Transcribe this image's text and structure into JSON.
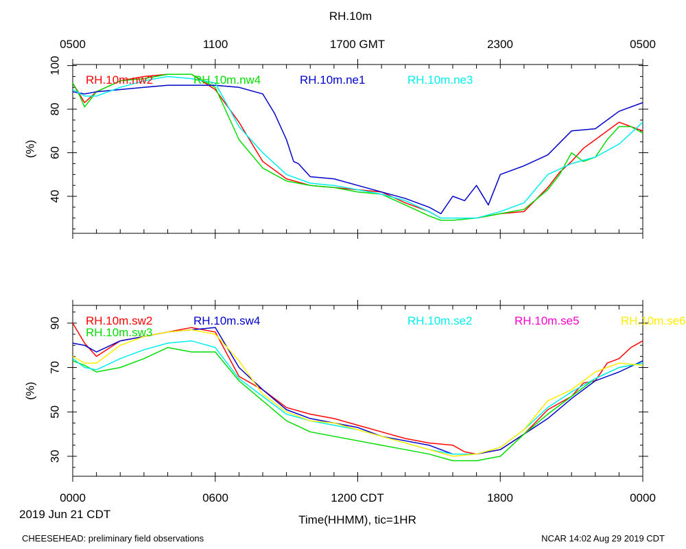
{
  "chart_data": {
    "type": "line",
    "title": "RH.10m",
    "top_axis": {
      "ticks": [
        0,
        6,
        12,
        18,
        24
      ],
      "labels": [
        "0500",
        "1100",
        "1700 GMT",
        "2300",
        "0500"
      ]
    },
    "bottom_axis": {
      "ticks": [
        0,
        6,
        12,
        18,
        24
      ],
      "labels": [
        "0000",
        "0600",
        "1200 CDT",
        "1800",
        "0000"
      ],
      "xlabel": "Time(HHMM), tic=1HR",
      "date_label": "2019 Jun 21 CDT",
      "xlim": [
        0,
        24
      ]
    },
    "footer_left": "CHEESEHEAD: preliminary field observations",
    "footer_right": "NCAR 14:02 Aug 29 2019 CDT",
    "panels": [
      {
        "ylabel": "(%)",
        "ylim": [
          23,
          100.5
        ],
        "yticks": [
          40,
          60,
          80,
          100
        ],
        "ytick_labels": [
          "40",
          "60",
          "80",
          "100"
        ],
        "series": [
          {
            "name": "RH.10m.nw2",
            "color": "#ff0000",
            "x": [
              0,
              0.5,
              1,
              2,
              3,
              4,
              5,
              6,
              7,
              8,
              9,
              10,
              11,
              12,
              13,
              14,
              15,
              15.5,
              16,
              17,
              18,
              19,
              20,
              20.5,
              21,
              21.5,
              22,
              22.5,
              23,
              23.5,
              24
            ],
            "y": [
              92,
              83,
              88,
              93,
              95,
              96,
              96,
              89,
              74,
              56,
              48,
              45,
              44,
              43,
              42,
              37,
              33,
              30,
              30,
              30,
              32,
              33,
              44,
              51,
              56,
              62,
              66,
              70,
              74,
              72,
              70
            ]
          },
          {
            "name": "RH.10m.nw4",
            "color": "#00dd00",
            "x": [
              0,
              0.3,
              0.5,
              1,
              2,
              3,
              4,
              5,
              6,
              7,
              8,
              9,
              10,
              11,
              12,
              13,
              14,
              15,
              15.5,
              16,
              17,
              18,
              19,
              20,
              20.5,
              21,
              21.5,
              22,
              22.5,
              23,
              23.5,
              24
            ],
            "y": [
              92,
              86,
              81,
              88,
              93,
              94,
              96,
              96,
              90,
              66,
              53,
              47,
              45,
              44,
              42,
              41,
              36,
              31,
              29,
              29,
              30,
              32,
              34,
              43,
              50,
              60,
              56,
              58,
              66,
              72,
              72,
              69
            ]
          },
          {
            "name": "RH.10m.ne1",
            "color": "#0000cc",
            "x": [
              0,
              0.5,
              1,
              2,
              3,
              4,
              5,
              6,
              7,
              8,
              8.5,
              9,
              9.3,
              9.5,
              10,
              11,
              12,
              13,
              14,
              15,
              15.5,
              16,
              16.5,
              17,
              17.5,
              18,
              19,
              20,
              21,
              22,
              23,
              24
            ],
            "y": [
              88,
              87,
              88,
              89,
              90,
              91,
              91,
              91,
              90,
              87,
              78,
              66,
              56,
              55,
              49,
              48,
              45,
              42,
              39,
              35,
              32,
              40,
              38,
              45,
              36,
              50,
              54,
              59,
              70,
              71,
              79,
              83
            ]
          },
          {
            "name": "RH.10m.ne3",
            "color": "#00eeee",
            "x": [
              0,
              0.5,
              1,
              2,
              3,
              4,
              5,
              6,
              7,
              8,
              9,
              10,
              11,
              12,
              13,
              14,
              15,
              15.5,
              16,
              17,
              18,
              19,
              20,
              21,
              22,
              23,
              24
            ],
            "y": [
              89,
              86,
              86,
              90,
              93,
              95,
              94,
              92,
              72,
              60,
              50,
              46,
              45,
              43,
              41,
              38,
              33,
              30,
              30,
              30,
              33,
              37,
              50,
              55,
              58,
              64,
              74
            ]
          }
        ]
      },
      {
        "ylabel": "(%)",
        "ylim": [
          21,
          98
        ],
        "yticks": [
          30,
          50,
          70,
          90
        ],
        "ytick_labels": [
          "30",
          "50",
          "70",
          "90"
        ],
        "series": [
          {
            "name": "RH.10m.sw2",
            "color": "#ff0000",
            "x": [
              0,
              0.5,
              1,
              2,
              3,
              4,
              5,
              6,
              7,
              8,
              9,
              10,
              11,
              12,
              13,
              14,
              15,
              16,
              16.5,
              17,
              18,
              19,
              20,
              21,
              21.5,
              22,
              22.5,
              23,
              23.5,
              24
            ],
            "y": [
              90,
              81,
              75,
              82,
              84,
              86,
              88,
              86,
              66,
              60,
              52,
              49,
              47,
              44,
              41,
              38,
              36,
              35,
              32,
              31,
              33,
              40,
              51,
              57,
              63,
              64,
              72,
              74,
              79,
              82
            ]
          },
          {
            "name": "RH.10m.sw4",
            "color": "#0000cc",
            "x": [
              0,
              0.5,
              1,
              2,
              3,
              4,
              5,
              6,
              7,
              8,
              9,
              10,
              11,
              12,
              13,
              14,
              15,
              16,
              17,
              18,
              19,
              20,
              21,
              22,
              23,
              24
            ],
            "y": [
              81,
              80,
              77,
              82,
              84,
              86,
              87,
              88,
              70,
              60,
              51,
              47,
              45,
              43,
              39,
              37,
              35,
              31,
              31,
              33,
              40,
              47,
              56,
              64,
              68,
              73
            ]
          },
          {
            "name": "RH.10m.sw3",
            "color": "#00dd00",
            "x": [
              0,
              0.5,
              1,
              2,
              3,
              4,
              5,
              6,
              7,
              8,
              9,
              10,
              11,
              12,
              13,
              14,
              15,
              16,
              17,
              18,
              19,
              20,
              21,
              22,
              23,
              24
            ],
            "y": [
              73,
              71,
              68,
              70,
              74,
              79,
              77,
              77,
              64,
              55,
              46,
              41,
              39,
              37,
              35,
              33,
              31,
              28,
              28,
              30,
              40,
              49,
              57,
              65,
              70,
              72
            ]
          },
          {
            "name": "RH.10m.se2",
            "color": "#00eeee",
            "x": [
              0,
              0.5,
              1,
              2,
              3,
              4,
              5,
              6,
              7,
              8,
              9,
              10,
              11,
              12,
              13,
              14,
              15,
              16,
              17,
              18,
              19,
              20,
              21,
              22,
              23,
              24
            ],
            "y": [
              74,
              70,
              69,
              74,
              78,
              81,
              82,
              79,
              65,
              57,
              49,
              46,
              44,
              42,
              39,
              36,
              33,
              31,
              31,
              34,
              42,
              52,
              59,
              65,
              70,
              72
            ]
          },
          {
            "name": "RH.10m.se5",
            "color": "#ff00cc",
            "x": [],
            "y": []
          },
          {
            "name": "RH.10m.se6",
            "color": "#ffee00",
            "x": [
              0,
              0.5,
              1,
              2,
              3,
              4,
              5,
              6,
              7,
              8,
              9,
              10,
              11,
              12,
              13,
              14,
              15,
              16,
              17,
              18,
              19,
              20,
              21,
              22,
              23,
              24
            ],
            "y": [
              75,
              72,
              72,
              80,
              84,
              86,
              87,
              85,
              73,
              58,
              50,
              46,
              45,
              42,
              39,
              36,
              33,
              30,
              31,
              34,
              42,
              55,
              60,
              68,
              72,
              71
            ]
          }
        ]
      }
    ]
  }
}
